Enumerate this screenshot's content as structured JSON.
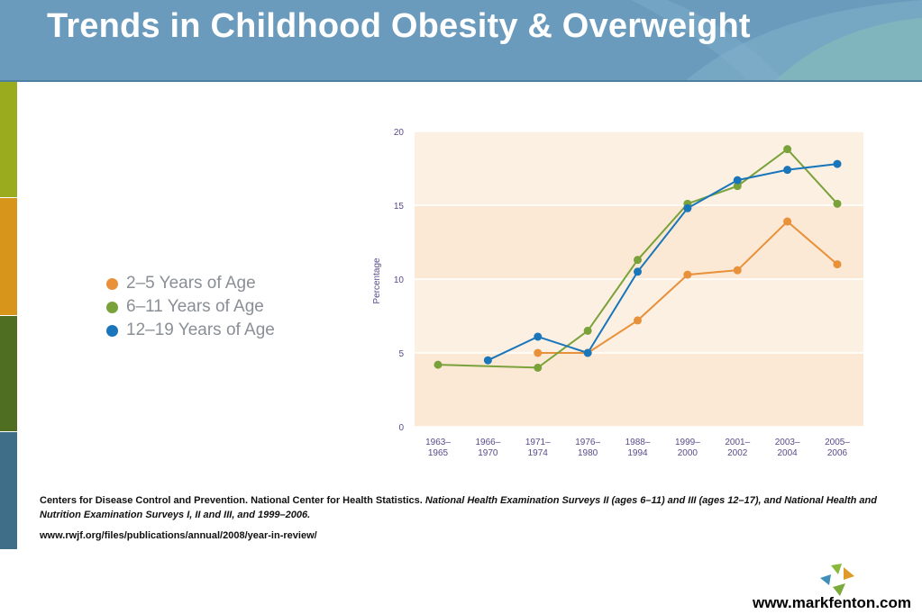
{
  "header": {
    "title": "Trends in Childhood Obesity & Overweight"
  },
  "chart_data": {
    "type": "line",
    "title": "",
    "xlabel": "",
    "ylabel": "Percentage",
    "ylim": [
      0,
      20
    ],
    "yticks": [
      "0",
      "5",
      "10",
      "15",
      "20"
    ],
    "categories": [
      "1963–\n1965",
      "1966–\n1970",
      "1971–\n1974",
      "1976–\n1980",
      "1988–\n1994",
      "1999–\n2000",
      "2001–\n2002",
      "2003–\n2004",
      "2005–\n2006"
    ],
    "series": [
      {
        "name": "2–5 Years of Age",
        "color": "#e8913a",
        "values": [
          null,
          null,
          5.0,
          5.0,
          7.2,
          10.3,
          10.6,
          13.9,
          11.0
        ]
      },
      {
        "name": "6–11 Years of Age",
        "color": "#7aa23a",
        "values": [
          4.2,
          null,
          4.0,
          6.5,
          11.3,
          15.1,
          16.3,
          18.8,
          15.1
        ]
      },
      {
        "name": "12–19 Years of Age",
        "color": "#1a76ba",
        "values": [
          null,
          4.5,
          6.1,
          5.0,
          10.5,
          14.8,
          16.7,
          17.4,
          17.8
        ]
      }
    ],
    "grid": true,
    "legend": "left"
  },
  "citation": {
    "plain": "Centers for Disease Control and Prevention. National Center for Health Statistics.",
    "italic": "National Health Examination Surveys II (ages 6–11) and III (ages 12–17), and National Health and Nutrition Examination Surveys I, II and III, and 1999–2006.",
    "url": "www.rwjf.org/files/publications/annual/2008/year-in-review/"
  },
  "footer": {
    "url": "www.markfenton.com"
  },
  "side_bar_colors": [
    "#9aab1e",
    "#d8951b",
    "#4f6e22",
    "#3f6f88"
  ]
}
